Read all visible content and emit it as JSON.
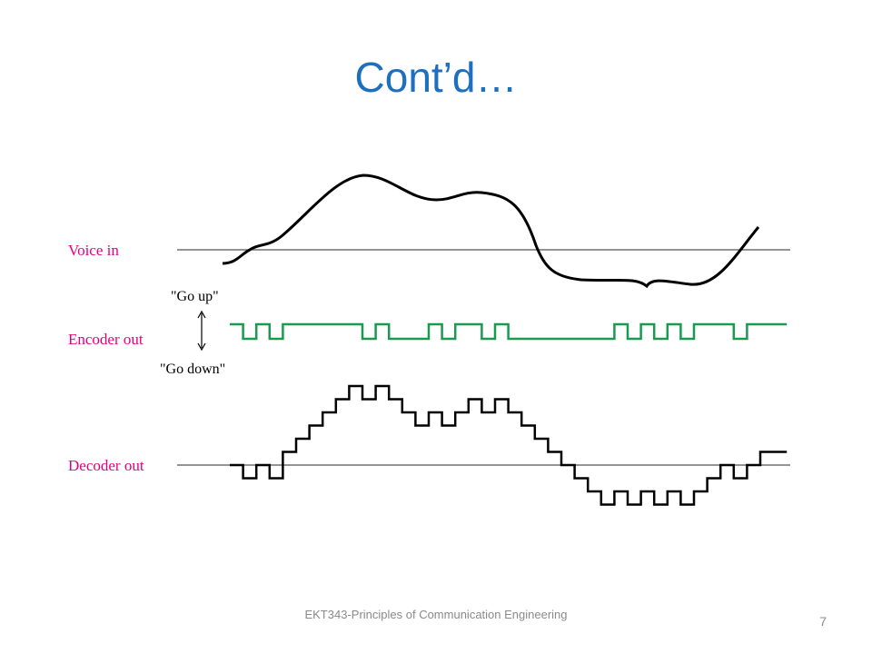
{
  "title": "Cont’d…",
  "diagram": {
    "labels": {
      "voice_in": "Voice in",
      "encoder_out": "Encoder out",
      "decoder_out": "Decoder out",
      "go_up": "\"Go up\"",
      "go_down": "\"Go down\""
    }
  },
  "footer": {
    "course": "EKT343-Principles of Communication Engineering",
    "page_number": "7"
  }
}
